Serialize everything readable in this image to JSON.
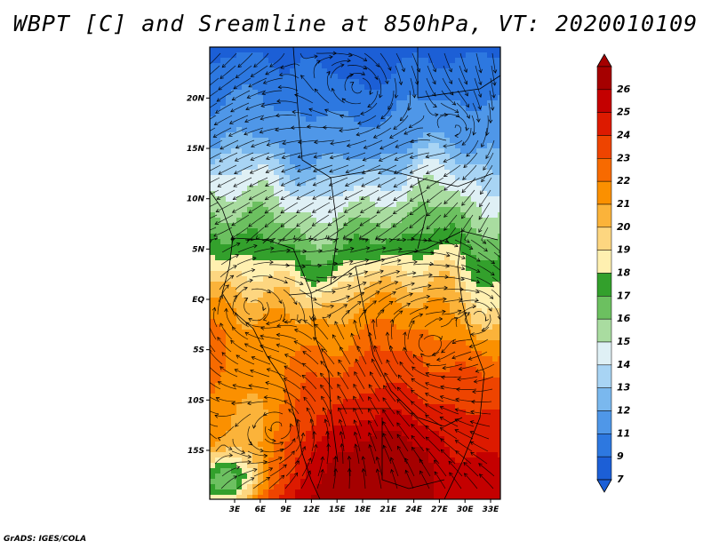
{
  "title": "WBPT [C] and Sreamline at 850hPa, VT: 2020010109",
  "credit": "GrADS: IGES/COLA",
  "lat_labels": [
    "20N",
    "15N",
    "10N",
    "5N",
    "EQ",
    "5S",
    "10S",
    "15S"
  ],
  "lon_labels": [
    "3E",
    "6E",
    "9E",
    "12E",
    "15E",
    "18E",
    "21E",
    "24E",
    "27E",
    "30E",
    "33E"
  ],
  "colorbar": {
    "labels": [
      "26",
      "25",
      "24",
      "23",
      "22",
      "21",
      "20",
      "19",
      "18",
      "17",
      "16",
      "15",
      "14",
      "13",
      "12",
      "11",
      "9",
      "7"
    ],
    "colors": [
      "#a50000",
      "#c40000",
      "#dd1a00",
      "#ee4400",
      "#f76a00",
      "#fb9000",
      "#fbb33a",
      "#fdd680",
      "#fff0b0",
      "#33a02c",
      "#6cc060",
      "#a9dca0",
      "#dff0f5",
      "#a8d4f4",
      "#7ab8ee",
      "#4f97e8",
      "#2d78e0",
      "#1c5fd6"
    ]
  },
  "map": {
    "variable": "Wet-bulb potential temperature",
    "units": "C",
    "level": "850hPa",
    "valid_time": "2020010109"
  }
}
